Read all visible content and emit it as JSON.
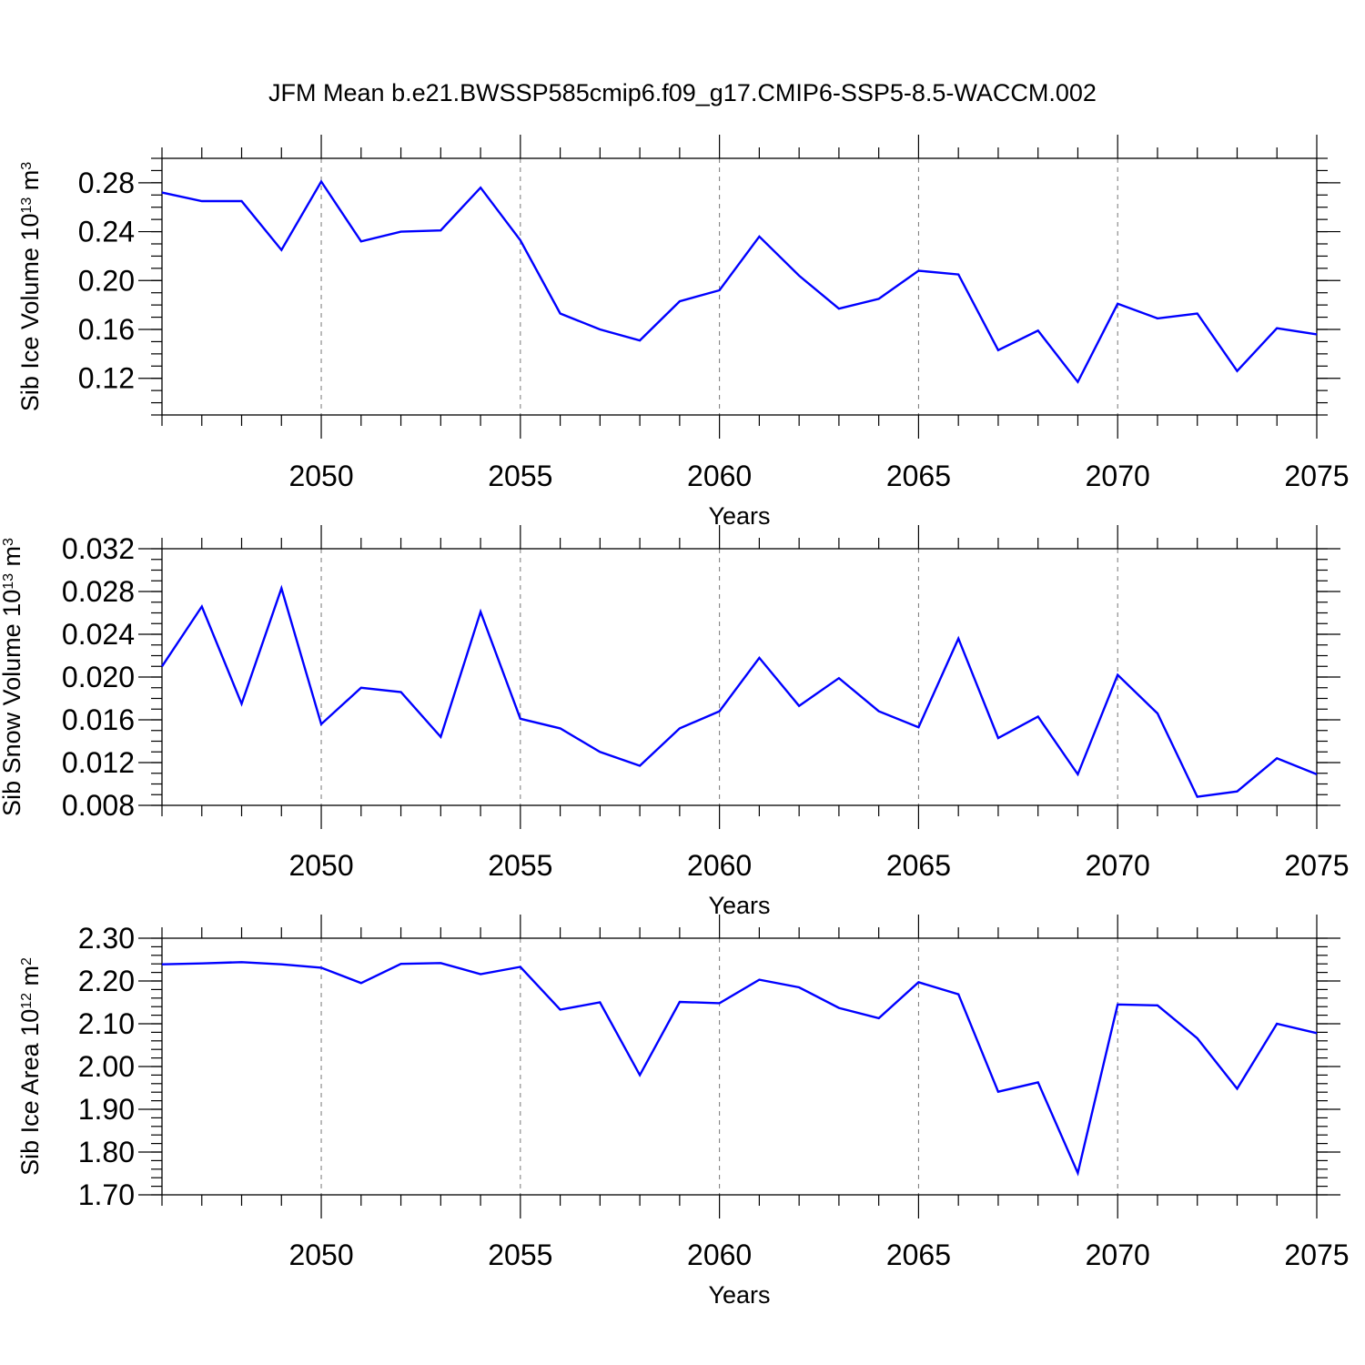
{
  "figure": {
    "title": "JFM Mean b.e21.BWSSP585cmip6.f09_g17.CMIP6-SSP5-8.5-WACCM.002",
    "line_color": "#0000ff"
  },
  "chart_data": [
    {
      "type": "line",
      "id": "ice-volume",
      "xlabel": "Years",
      "ylabel": {
        "text": "Sib Ice Volume 10",
        "sup": "13",
        "unit": " m",
        "unit_sup": "3"
      },
      "xlim": [
        2046,
        2075
      ],
      "ylim": [
        0.09,
        0.3
      ],
      "xticks": [
        2050,
        2055,
        2060,
        2065,
        2070,
        2075
      ],
      "xtick_labels": [
        "2050",
        "2055",
        "2060",
        "2065",
        "2070",
        "2075"
      ],
      "yticks": [
        0.12,
        0.16,
        0.2,
        0.24,
        0.28
      ],
      "ytick_labels": [
        "0.12",
        "0.16",
        "0.20",
        "0.24",
        "0.28"
      ],
      "y_minor_step": 0.01,
      "grid": "vertical dashed at major x ticks",
      "x": [
        2046,
        2047,
        2048,
        2049,
        2050,
        2051,
        2052,
        2053,
        2054,
        2055,
        2056,
        2057,
        2058,
        2059,
        2060,
        2061,
        2062,
        2063,
        2064,
        2065,
        2066,
        2067,
        2068,
        2069,
        2070,
        2071,
        2072,
        2073,
        2074,
        2075
      ],
      "series": [
        {
          "values": [
            0.272,
            0.265,
            0.265,
            0.225,
            0.281,
            0.232,
            0.24,
            0.241,
            0.276,
            0.233,
            0.173,
            0.16,
            0.151,
            0.183,
            0.192,
            0.236,
            0.204,
            0.177,
            0.185,
            0.208,
            0.205,
            0.143,
            0.159,
            0.117,
            0.181,
            0.169,
            0.173,
            0.126,
            0.161,
            0.156
          ]
        }
      ]
    },
    {
      "type": "line",
      "id": "snow-volume",
      "xlabel": "Years",
      "ylabel": {
        "text": "Sib Snow Volume 10",
        "sup": "13",
        "unit": " m",
        "unit_sup": "3"
      },
      "xlim": [
        2046,
        2075
      ],
      "ylim": [
        0.008,
        0.032
      ],
      "xticks": [
        2050,
        2055,
        2060,
        2065,
        2070,
        2075
      ],
      "xtick_labels": [
        "2050",
        "2055",
        "2060",
        "2065",
        "2070",
        "2075"
      ],
      "yticks": [
        0.008,
        0.012,
        0.016,
        0.02,
        0.024,
        0.028,
        0.032
      ],
      "ytick_labels": [
        "0.008",
        "0.012",
        "0.016",
        "0.020",
        "0.024",
        "0.028",
        "0.032"
      ],
      "y_minor_step": 0.001,
      "grid": "vertical dashed at major x ticks",
      "x": [
        2046,
        2047,
        2048,
        2049,
        2050,
        2051,
        2052,
        2053,
        2054,
        2055,
        2056,
        2057,
        2058,
        2059,
        2060,
        2061,
        2062,
        2063,
        2064,
        2065,
        2066,
        2067,
        2068,
        2069,
        2070,
        2071,
        2072,
        2073,
        2074,
        2075
      ],
      "series": [
        {
          "values": [
            0.021,
            0.0266,
            0.0175,
            0.0283,
            0.0156,
            0.019,
            0.0186,
            0.0144,
            0.0261,
            0.0161,
            0.0152,
            0.013,
            0.0117,
            0.0152,
            0.0168,
            0.0218,
            0.0173,
            0.0199,
            0.0168,
            0.0153,
            0.0236,
            0.0143,
            0.0163,
            0.0109,
            0.0202,
            0.0166,
            0.0088,
            0.0093,
            0.0124,
            0.0109
          ]
        }
      ]
    },
    {
      "type": "line",
      "id": "ice-area",
      "xlabel": "Years",
      "ylabel": {
        "text": "Sib Ice Area 10",
        "sup": "12",
        "unit": " m",
        "unit_sup": "2"
      },
      "xlim": [
        2046,
        2075
      ],
      "ylim": [
        1.7,
        2.3
      ],
      "xticks": [
        2050,
        2055,
        2060,
        2065,
        2070,
        2075
      ],
      "xtick_labels": [
        "2050",
        "2055",
        "2060",
        "2065",
        "2070",
        "2075"
      ],
      "yticks": [
        1.7,
        1.8,
        1.9,
        2.0,
        2.1,
        2.2,
        2.3
      ],
      "ytick_labels": [
        "1.70",
        "1.80",
        "1.90",
        "2.00",
        "2.10",
        "2.20",
        "2.30"
      ],
      "y_minor_step": 0.02,
      "grid": "vertical dashed at major x ticks",
      "x": [
        2046,
        2047,
        2048,
        2049,
        2050,
        2051,
        2052,
        2053,
        2054,
        2055,
        2056,
        2057,
        2058,
        2059,
        2060,
        2061,
        2062,
        2063,
        2064,
        2065,
        2066,
        2067,
        2068,
        2069,
        2070,
        2071,
        2072,
        2073,
        2074,
        2075
      ],
      "series": [
        {
          "values": [
            2.239,
            2.241,
            2.244,
            2.239,
            2.231,
            2.195,
            2.24,
            2.242,
            2.216,
            2.233,
            2.133,
            2.15,
            1.98,
            2.151,
            2.148,
            2.203,
            2.185,
            2.137,
            2.113,
            2.197,
            2.169,
            1.941,
            1.963,
            1.751,
            2.145,
            2.143,
            2.066,
            1.948,
            2.1,
            2.078
          ]
        }
      ]
    }
  ]
}
